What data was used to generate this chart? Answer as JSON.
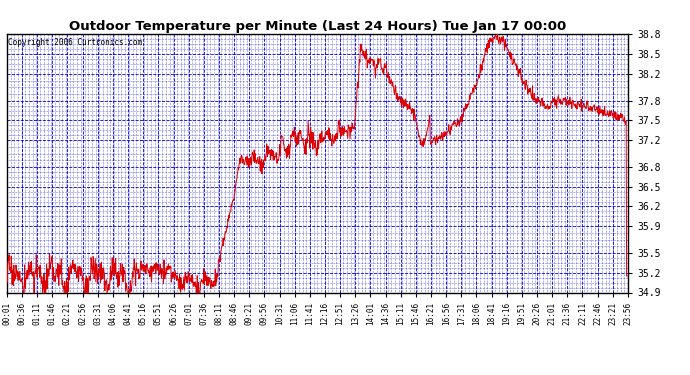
{
  "title": "Outdoor Temperature per Minute (Last 24 Hours) Tue Jan 17 00:00",
  "copyright": "Copyright 2006 Curtronics.com",
  "background_color": "#ffffff",
  "plot_background": "#ffffff",
  "grid_major_color": "#0000cc",
  "grid_minor_color": "#0000cc",
  "line_color": "#dd0000",
  "ylim": [
    34.9,
    38.8
  ],
  "yticks": [
    34.9,
    35.2,
    35.5,
    35.9,
    36.2,
    36.5,
    36.8,
    37.2,
    37.5,
    37.8,
    38.2,
    38.5,
    38.8
  ],
  "xtick_labels": [
    "00:01",
    "00:36",
    "01:11",
    "01:46",
    "02:21",
    "02:56",
    "03:31",
    "04:06",
    "04:41",
    "05:16",
    "05:51",
    "06:26",
    "07:01",
    "07:36",
    "08:11",
    "08:46",
    "09:21",
    "09:56",
    "10:31",
    "11:06",
    "11:41",
    "12:16",
    "12:51",
    "13:26",
    "14:01",
    "14:36",
    "15:11",
    "15:46",
    "16:21",
    "16:56",
    "17:31",
    "18:06",
    "18:41",
    "19:16",
    "19:51",
    "20:26",
    "21:01",
    "21:36",
    "22:11",
    "22:46",
    "23:21",
    "23:56"
  ],
  "figsize": [
    6.9,
    3.75
  ],
  "dpi": 100
}
